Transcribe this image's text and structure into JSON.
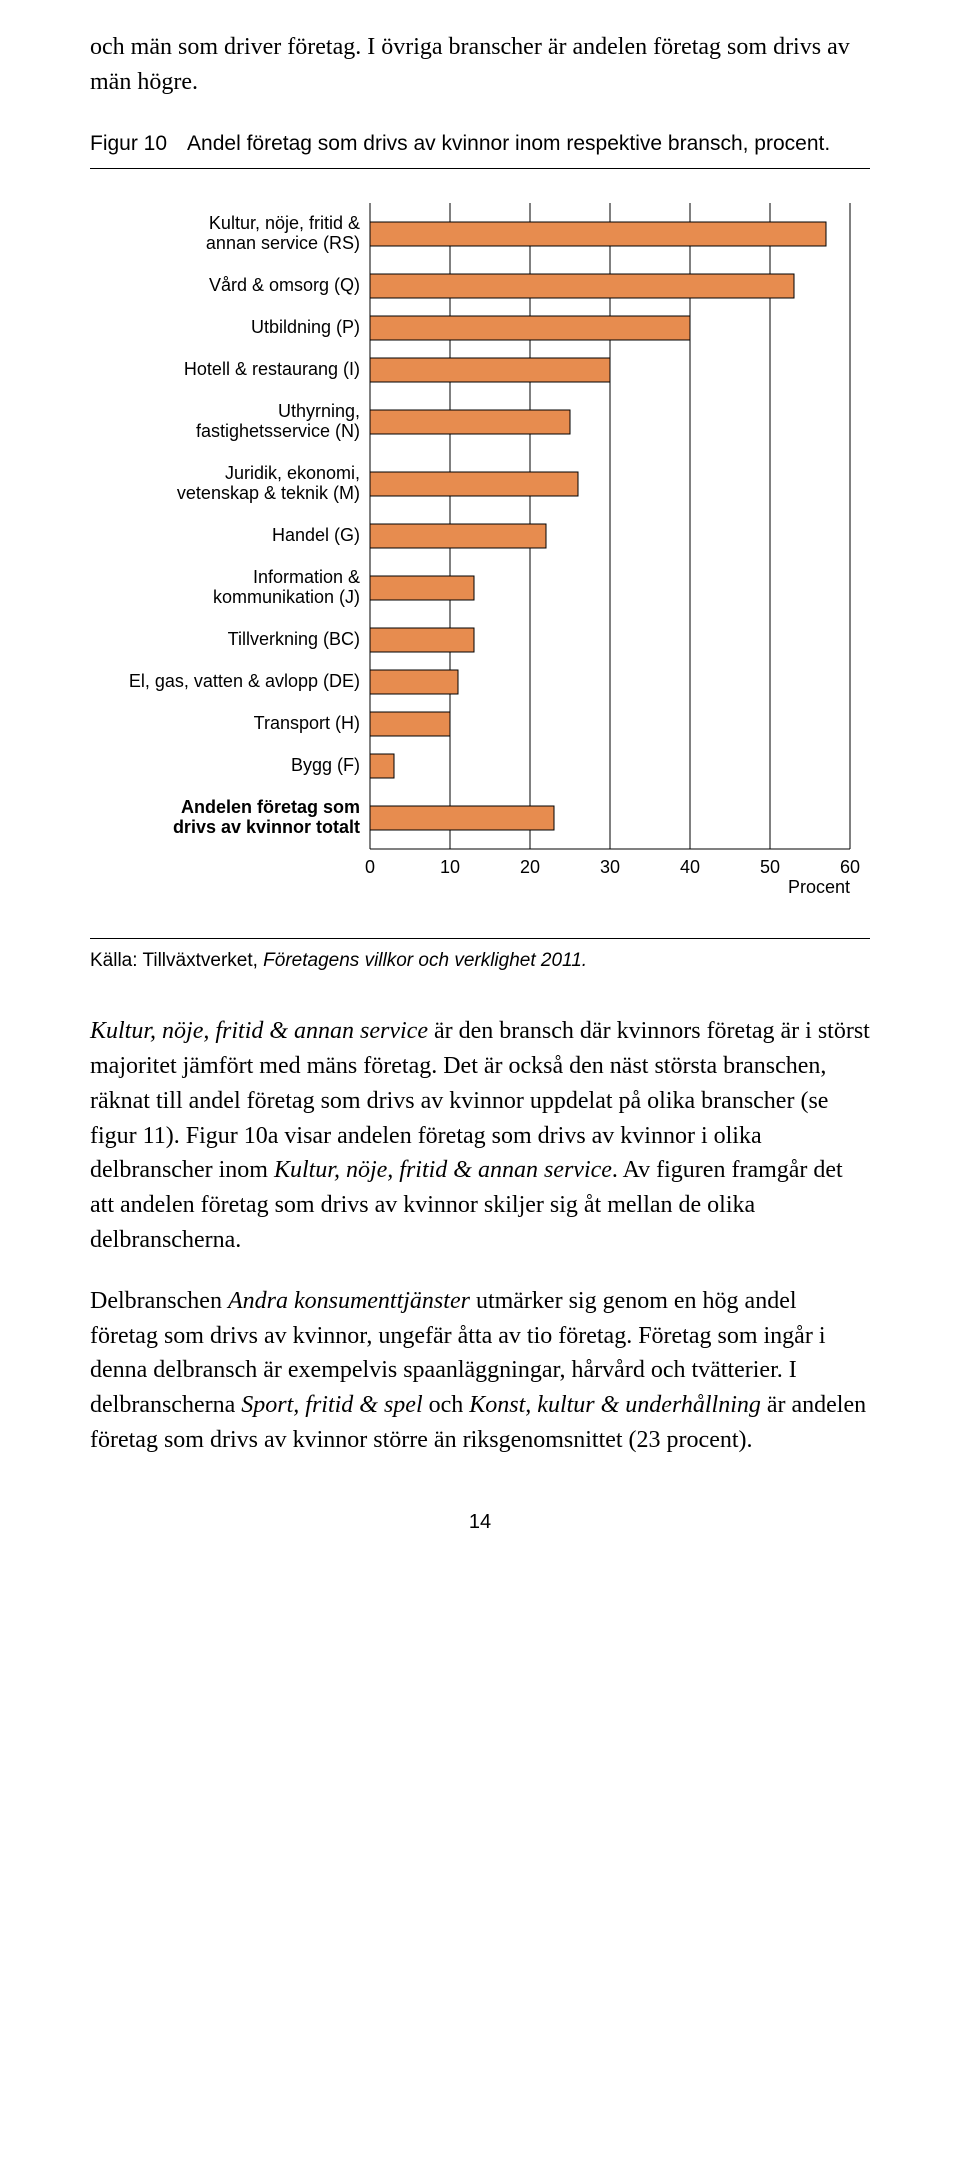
{
  "intro_text": "och män som driver företag. I övriga branscher är andelen företag som drivs av män högre.",
  "figure": {
    "number_label": "Figur 10",
    "title": "Andel företag som drivs av kvinnor inom respektive bransch, procent.",
    "source_label": "Källa: Tillväxtverket, ",
    "source_publication": "Företagens villkor och verklighet 2011.",
    "chart": {
      "type": "bar-horizontal",
      "bar_color": "#e78c4f",
      "bar_stroke": "#000000",
      "grid_color": "#000000",
      "background_color": "#ffffff",
      "label_font": "Myriad Pro, Arial, sans-serif",
      "label_fontsize": 18,
      "x_axis": {
        "min": 0,
        "max": 60,
        "tick_step": 10,
        "label": "Procent"
      },
      "categories": [
        {
          "label_lines": [
            "Kultur, nöje, fritid &",
            "annan service (RS)"
          ],
          "value": 57,
          "bold": false
        },
        {
          "label_lines": [
            "Vård & omsorg (Q)"
          ],
          "value": 53,
          "bold": false
        },
        {
          "label_lines": [
            "Utbildning (P)"
          ],
          "value": 40,
          "bold": false
        },
        {
          "label_lines": [
            "Hotell & restaurang (I)"
          ],
          "value": 30,
          "bold": false
        },
        {
          "label_lines": [
            "Uthyrning,",
            "fastighetsservice (N)"
          ],
          "value": 25,
          "bold": false
        },
        {
          "label_lines": [
            "Juridik, ekonomi,",
            "vetenskap & teknik (M)"
          ],
          "value": 26,
          "bold": false
        },
        {
          "label_lines": [
            "Handel (G)"
          ],
          "value": 22,
          "bold": false
        },
        {
          "label_lines": [
            "Information &",
            "kommunikation (J)"
          ],
          "value": 13,
          "bold": false
        },
        {
          "label_lines": [
            "Tillverkning (BC)"
          ],
          "value": 13,
          "bold": false
        },
        {
          "label_lines": [
            "El, gas, vatten & avlopp (DE)"
          ],
          "value": 11,
          "bold": false
        },
        {
          "label_lines": [
            "Transport (H)"
          ],
          "value": 10,
          "bold": false
        },
        {
          "label_lines": [
            "Bygg (F)"
          ],
          "value": 3,
          "bold": false
        },
        {
          "label_lines": [
            "Andelen företag som",
            "drivs av kvinnor totalt"
          ],
          "value": 23,
          "bold": true
        }
      ]
    }
  },
  "body_para_1": {
    "runs": [
      {
        "text": "Kultur, nöje, fritid & annan service",
        "italic": true
      },
      {
        "text": " är den bransch där kvinnors företag är i störst majoritet jämfört med mäns företag. Det är också den näst största branschen, räknat till andel företag som drivs av kvinnor uppdelat på olika branscher (se figur 11). Figur 10a visar andelen företag som drivs av kvinnor i olika delbranscher inom ",
        "italic": false
      },
      {
        "text": "Kultur, nöje, fritid & annan service",
        "italic": true
      },
      {
        "text": ". Av figuren framgår det att andelen företag som drivs av kvinnor skiljer sig åt mellan de olika delbranscherna.",
        "italic": false
      }
    ]
  },
  "body_para_2": {
    "runs": [
      {
        "text": "Delbranschen ",
        "italic": false
      },
      {
        "text": "Andra konsumenttjänster",
        "italic": true
      },
      {
        "text": " utmärker sig genom en hög andel företag som drivs av kvinnor, ungefär åtta av tio företag. Företag som ingår i denna delbransch är exempelvis spaanläggningar, hårvård och tvätterier. I delbranscherna ",
        "italic": false
      },
      {
        "text": "Sport, fritid & spel",
        "italic": true
      },
      {
        "text": " och ",
        "italic": false
      },
      {
        "text": "Konst, kultur & underhållning",
        "italic": true
      },
      {
        "text": " är andelen företag som drivs av kvinnor större än riksgenomsnittet (23 procent).",
        "italic": false
      }
    ]
  },
  "page_number": "14"
}
